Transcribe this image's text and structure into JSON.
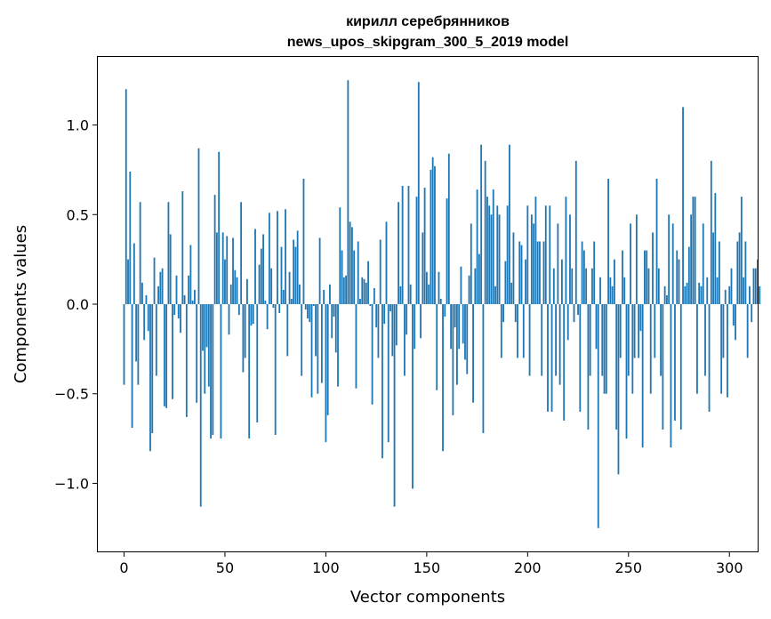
{
  "chart_data": {
    "type": "bar",
    "title": "кирилл серебрянников",
    "subtitle": "news_upos_skipgram_300_5_2019 model",
    "xlabel": "Vector components",
    "ylabel": "Components values",
    "xlim": [
      -13,
      314
    ],
    "ylim": [
      -1.38,
      1.38
    ],
    "xticks": [
      0,
      50,
      100,
      150,
      200,
      250,
      300
    ],
    "xtick_labels": [
      "0",
      "50",
      "100",
      "150",
      "200",
      "250",
      "300"
    ],
    "yticks": [
      1.0,
      0.5,
      0.0,
      -0.5,
      -1.0
    ],
    "ytick_labels": [
      "1.0",
      "0.5",
      "0.0",
      "−0.5",
      "−1.0"
    ],
    "color": "#1f77b4",
    "grid": false,
    "values": [
      -0.45,
      1.2,
      0.25,
      0.74,
      -0.69,
      0.34,
      -0.32,
      -0.45,
      0.57,
      0.12,
      -0.2,
      0.05,
      -0.15,
      -0.82,
      -0.72,
      0.26,
      -0.4,
      0.1,
      0.18,
      0.2,
      -0.57,
      -0.58,
      0.57,
      0.39,
      -0.53,
      -0.06,
      0.16,
      -0.08,
      -0.16,
      0.63,
      0.05,
      -0.63,
      0.16,
      0.33,
      0.02,
      0.08,
      -0.55,
      0.87,
      -1.13,
      -0.26,
      -0.5,
      -0.24,
      -0.46,
      -0.75,
      -0.73,
      0.61,
      0.4,
      0.85,
      -0.75,
      0.4,
      0.25,
      0.38,
      -0.17,
      0.11,
      0.37,
      0.19,
      0.15,
      -0.06,
      0.57,
      -0.38,
      -0.3,
      0.14,
      -0.75,
      -0.12,
      -0.11,
      0.42,
      -0.66,
      0.22,
      0.31,
      0.39,
      0.02,
      -0.14,
      0.51,
      0.2,
      -0.02,
      -0.73,
      0.52,
      -0.05,
      0.32,
      0.08,
      0.53,
      -0.29,
      0.18,
      0.03,
      0.36,
      0.32,
      0.41,
      0.11,
      -0.4,
      0.7,
      -0.03,
      -0.08,
      -0.1,
      -0.52,
      -0.01,
      -0.29,
      -0.5,
      0.37,
      -0.44,
      0.08,
      -0.77,
      -0.62,
      0.11,
      -0.19,
      -0.07,
      -0.27,
      -0.46,
      0.54,
      0.3,
      0.15,
      0.16,
      1.25,
      0.46,
      0.43,
      0.3,
      -0.47,
      0.35,
      0.03,
      0.15,
      0.14,
      0.12,
      0.24,
      -0.01,
      -0.56,
      0.09,
      -0.13,
      -0.3,
      0.36,
      -0.86,
      -0.11,
      0.46,
      -0.77,
      -0.04,
      -0.29,
      -1.13,
      -0.23,
      0.57,
      0.1,
      0.66,
      -0.4,
      -0.17,
      0.66,
      0.11,
      -1.03,
      -0.25,
      0.6,
      1.24,
      -0.19,
      0.4,
      0.65,
      0.18,
      0.11,
      0.75,
      0.82,
      0.77,
      -0.48,
      0.18,
      0.03,
      -0.82,
      -0.07,
      0.59,
      0.84,
      -0.25,
      -0.62,
      -0.13,
      -0.45,
      -0.25,
      0.21,
      -0.22,
      -0.31,
      -0.39,
      0.16,
      0.45,
      -0.55,
      0.2,
      0.64,
      0.28,
      0.89,
      -0.72,
      0.8,
      0.6,
      0.55,
      0.5,
      0.64,
      0.1,
      0.55,
      0.5,
      -0.3,
      -0.1,
      0.24,
      0.55,
      0.89,
      0.12,
      0.4,
      -0.1,
      -0.3,
      0.35,
      0.33,
      -0.3,
      0.25,
      0.55,
      -0.4,
      0.5,
      0.45,
      0.6,
      0.35,
      0.35,
      -0.4,
      0.35,
      0.55,
      -0.6,
      0.55,
      -0.6,
      0.2,
      -0.4,
      0.45,
      -0.45,
      0.25,
      -0.65,
      0.6,
      -0.2,
      0.5,
      0.2,
      -0.1,
      0.8,
      -0.06,
      -0.6,
      0.35,
      0.3,
      0.2,
      -0.7,
      -0.4,
      0.2,
      0.35,
      -0.25,
      -1.25,
      0.15,
      -0.4,
      -0.5,
      -0.5,
      0.7,
      0.15,
      0.1,
      0.25,
      -0.7,
      -0.95,
      -0.3,
      0.3,
      0.15,
      -0.75,
      -0.4,
      0.45,
      -0.5,
      -0.3,
      0.5,
      -0.3,
      -0.15,
      -0.8,
      0.3,
      0.3,
      0.2,
      -0.5,
      0.4,
      -0.3,
      0.7,
      0.2,
      -0.4,
      -0.7,
      0.1,
      0.05,
      0.5,
      -0.8,
      0.45,
      -0.65,
      0.3,
      0.25,
      -0.7,
      1.1,
      0.1,
      0.12,
      0.32,
      0.5,
      0.6,
      0.6,
      -0.5,
      0.12,
      0.1,
      0.45,
      -0.4,
      0.15,
      -0.6,
      0.8,
      0.4,
      0.62,
      0.15,
      0.35,
      -0.5,
      -0.3,
      0.08,
      -0.52,
      0.1,
      0.2,
      -0.12,
      -0.2,
      0.35,
      0.4,
      0.6,
      0.15,
      0.35,
      -0.3,
      0.1,
      -0.1,
      0.2,
      0.2,
      0.25,
      0.1
    ]
  }
}
